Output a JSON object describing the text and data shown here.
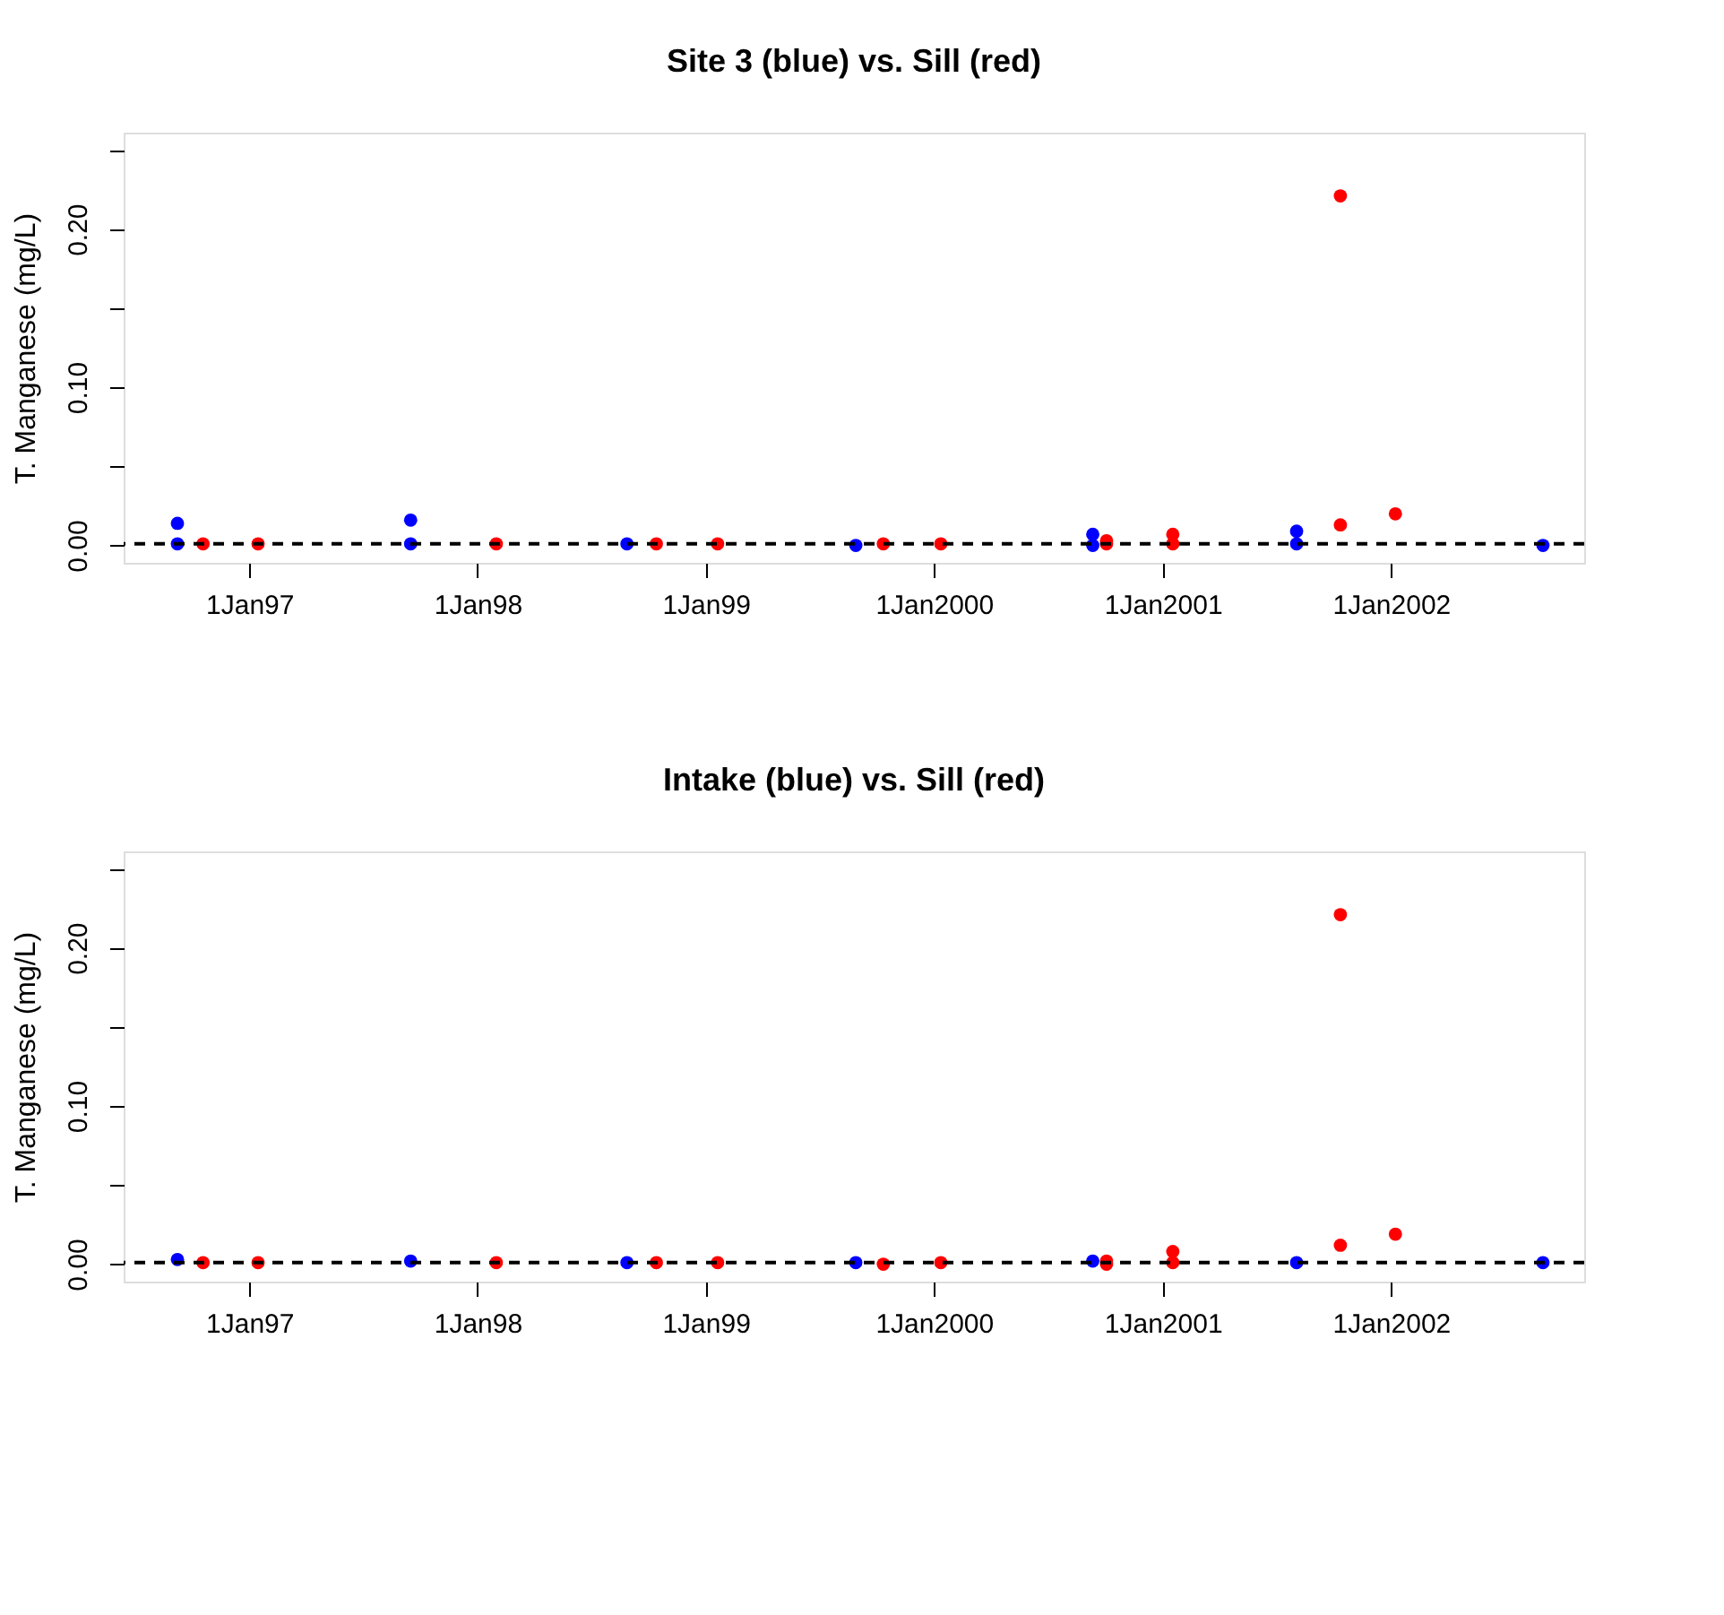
{
  "chart_data": [
    {
      "type": "scatter",
      "title": "Site 3 (blue) vs. Sill (red)",
      "ylabel": "T. Manganese (mg/L)",
      "marker": "circle",
      "grid": false,
      "xlim": [
        "1996-06-14",
        "2002-11-06"
      ],
      "ylim": [
        -0.011,
        0.261
      ],
      "xticks": [
        {
          "value": "1997-01-01",
          "label": "1Jan97"
        },
        {
          "value": "1998-01-01",
          "label": "1Jan98"
        },
        {
          "value": "1999-01-01",
          "label": "1Jan99"
        },
        {
          "value": "2000-01-01",
          "label": "1Jan2000"
        },
        {
          "value": "2001-01-01",
          "label": "1Jan2001"
        },
        {
          "value": "2002-01-01",
          "label": "1Jan2002"
        }
      ],
      "yticks": [
        {
          "value": 0,
          "label": "0.00"
        },
        {
          "value": 0.05,
          "label": null
        },
        {
          "value": 0.1,
          "label": "0.10"
        },
        {
          "value": 0.15,
          "label": null
        },
        {
          "value": 0.2,
          "label": "0.20"
        },
        {
          "value": 0.25,
          "label": null
        }
      ],
      "ref_lines": [
        {
          "axis": "y",
          "value": 0.001,
          "color": "#000000",
          "line_style": "dashed"
        }
      ],
      "series": [
        {
          "color": "#0000ff",
          "x": [
            "1996-09-08",
            "1996-09-08",
            "1997-09-16",
            "1997-09-16",
            "1998-08-28",
            "1999-08-29",
            "2000-09-11",
            "2000-09-11",
            "2001-08-03",
            "2001-08-03",
            "2002-09-01"
          ],
          "values": [
            0.014,
            0.001,
            0.016,
            0.001,
            0.001,
            0.0,
            0.007,
            0.0,
            0.009,
            0.001,
            0.0
          ]
        },
        {
          "color": "#ff0000",
          "x": [
            "1996-10-19",
            "1997-01-15",
            "1998-01-31",
            "1998-10-14",
            "1999-01-20",
            "1999-10-12",
            "2000-01-12",
            "2000-10-03",
            "2000-10-03",
            "2001-01-17",
            "2001-01-17",
            "2001-10-12",
            "2001-10-12",
            "2002-01-08"
          ],
          "values": [
            0.001,
            0.001,
            0.001,
            0.001,
            0.001,
            0.001,
            0.001,
            0.003,
            0.001,
            0.007,
            0.001,
            0.221,
            0.013,
            0.02
          ]
        }
      ]
    },
    {
      "type": "scatter",
      "title": "Intake (blue) vs. Sill (red)",
      "ylabel": "T. Manganese (mg/L)",
      "marker": "circle",
      "grid": false,
      "xlim": [
        "1996-06-14",
        "2002-11-06"
      ],
      "ylim": [
        -0.011,
        0.261
      ],
      "xticks": [
        {
          "value": "1997-01-01",
          "label": "1Jan97"
        },
        {
          "value": "1998-01-01",
          "label": "1Jan98"
        },
        {
          "value": "1999-01-01",
          "label": "1Jan99"
        },
        {
          "value": "2000-01-01",
          "label": "1Jan2000"
        },
        {
          "value": "2001-01-01",
          "label": "1Jan2001"
        },
        {
          "value": "2002-01-01",
          "label": "1Jan2002"
        }
      ],
      "yticks": [
        {
          "value": 0,
          "label": "0.00"
        },
        {
          "value": 0.05,
          "label": null
        },
        {
          "value": 0.1,
          "label": "0.10"
        },
        {
          "value": 0.15,
          "label": null
        },
        {
          "value": 0.2,
          "label": "0.20"
        },
        {
          "value": 0.25,
          "label": null
        }
      ],
      "ref_lines": [
        {
          "axis": "y",
          "value": 0.001,
          "color": "#000000",
          "line_style": "dashed"
        }
      ],
      "series": [
        {
          "color": "#0000ff",
          "x": [
            "1996-09-08",
            "1997-09-16",
            "1998-08-28",
            "1999-08-29",
            "2000-09-11",
            "2001-08-03",
            "2002-09-01"
          ],
          "values": [
            0.003,
            0.002,
            0.001,
            0.001,
            0.002,
            0.001,
            0.001
          ]
        },
        {
          "color": "#ff0000",
          "x": [
            "1996-10-19",
            "1997-01-15",
            "1998-01-31",
            "1998-10-14",
            "1999-01-20",
            "1999-10-12",
            "2000-01-12",
            "2000-10-03",
            "2000-10-03",
            "2001-01-17",
            "2001-01-17",
            "2001-10-12",
            "2001-10-12",
            "2002-01-08"
          ],
          "values": [
            0.001,
            0.001,
            0.001,
            0.001,
            0.001,
            0.0,
            0.001,
            0.002,
            0.0,
            0.008,
            0.001,
            0.221,
            0.012,
            0.019
          ]
        }
      ]
    }
  ]
}
